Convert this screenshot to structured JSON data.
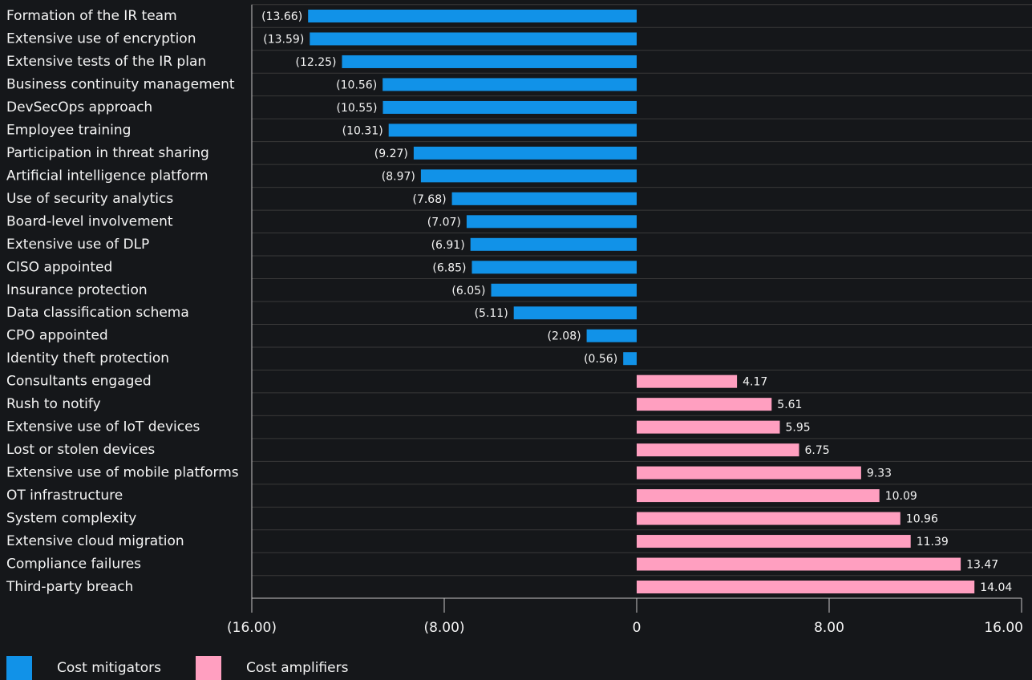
{
  "chart_data": {
    "type": "hbar",
    "categories": [
      "Formation of the IR team",
      "Extensive use of encryption",
      "Extensive tests of the IR plan",
      "Business continuity management",
      "DevSecOps approach",
      "Employee training",
      "Participation in threat sharing",
      "Artificial intelligence platform",
      "Use of security analytics",
      "Board-level involvement",
      "Extensive use of DLP",
      "CISO appointed",
      "Insurance protection",
      "Data classification schema",
      "CPO appointed",
      "Identity theft protection",
      "Consultants engaged",
      "Rush to notify",
      "Extensive use of IoT devices",
      "Lost or stolen devices",
      "Extensive use of mobile platforms",
      "OT infrastructure",
      "System complexity",
      "Extensive cloud migration",
      "Compliance failures",
      "Third-party breach"
    ],
    "series": [
      {
        "name": "Cost mitigators",
        "color": "#1192e8",
        "values": [
          -13.66,
          -13.59,
          -12.25,
          -10.56,
          -10.55,
          -10.31,
          -9.27,
          -8.97,
          -7.68,
          -7.07,
          -6.91,
          -6.85,
          -6.05,
          -5.11,
          -2.08,
          -0.56,
          null,
          null,
          null,
          null,
          null,
          null,
          null,
          null,
          null,
          null
        ],
        "value_labels": [
          "(13.66)",
          "(13.59)",
          "(12.25)",
          "(10.56)",
          "(10.55)",
          "(10.31)",
          "(9.27)",
          "(8.97)",
          "(7.68)",
          "(7.07)",
          "(6.91)",
          "(6.85)",
          "(6.05)",
          "(5.11)",
          "(2.08)",
          "(0.56)",
          null,
          null,
          null,
          null,
          null,
          null,
          null,
          null,
          null,
          null
        ]
      },
      {
        "name": "Cost amplifiers",
        "color": "#ff9fc0",
        "values": [
          null,
          null,
          null,
          null,
          null,
          null,
          null,
          null,
          null,
          null,
          null,
          null,
          null,
          null,
          null,
          null,
          4.17,
          5.61,
          5.95,
          6.75,
          9.33,
          10.09,
          10.96,
          11.39,
          13.47,
          14.04
        ],
        "value_labels": [
          null,
          null,
          null,
          null,
          null,
          null,
          null,
          null,
          null,
          null,
          null,
          null,
          null,
          null,
          null,
          null,
          "4.17",
          "5.61",
          "5.95",
          "6.75",
          "9.33",
          "10.09",
          "10.96",
          "11.39",
          "13.47",
          "14.04"
        ]
      }
    ],
    "xlim": [
      -16,
      16
    ],
    "xticks": [
      {
        "value": -16,
        "label": "(16.00)"
      },
      {
        "value": -8,
        "label": "(8.00)"
      },
      0,
      {
        "value": 8,
        "label": "8.00"
      },
      {
        "value": 16,
        "label": "16.00"
      }
    ],
    "legend": "bottom-left"
  }
}
